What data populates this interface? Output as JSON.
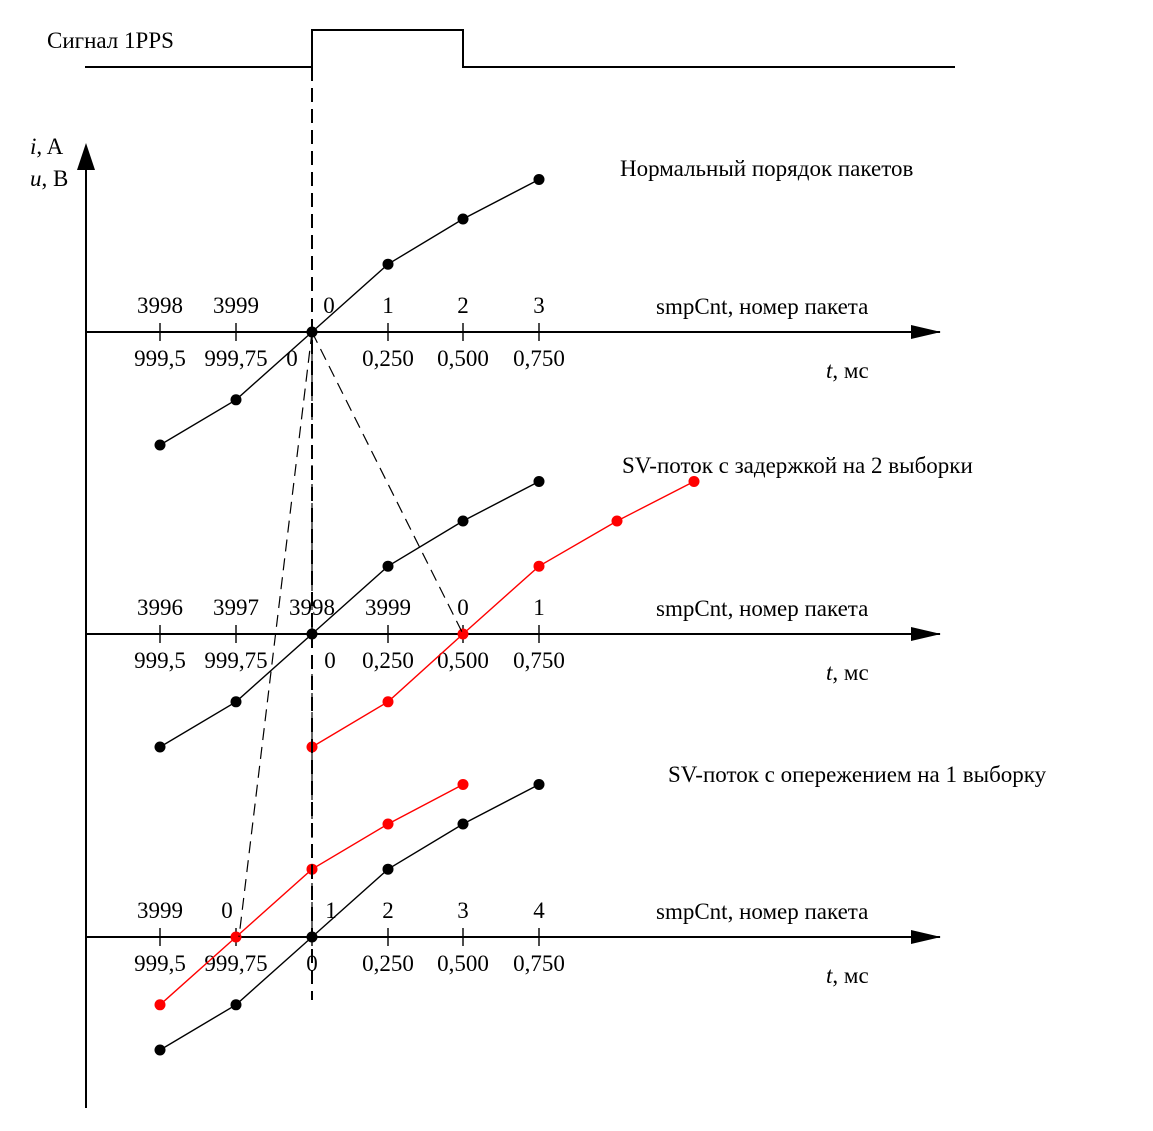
{
  "pps": {
    "label": "Сигнал 1PPS"
  },
  "y_axis": {
    "label_current_var": "i",
    "label_current_unit": ", A",
    "label_voltage_var": "u",
    "label_voltage_unit": ", B"
  },
  "panels": [
    {
      "title": "Нормальный порядок пакетов",
      "smp_label": "smpCnt, номер пакета",
      "time_var": "t",
      "time_unit": ", мс",
      "smp_ticks": [
        "3998",
        "3999",
        "0",
        "1",
        "2",
        "3"
      ],
      "time_ticks": [
        "999,5",
        "999,75",
        "0",
        "0,250",
        "0,500",
        "0,750"
      ],
      "black_series": [
        -1.0,
        -0.6,
        0.0,
        0.6,
        1.0,
        1.35
      ],
      "red_series": []
    },
    {
      "title": "SV-поток с задержкой на 2 выборки",
      "smp_label": "smpCnt, номер пакета",
      "time_var": "t",
      "time_unit": ", мс",
      "smp_ticks": [
        "3996",
        "3997",
        "3998",
        "3999",
        "0",
        "1"
      ],
      "time_ticks": [
        "999,5",
        "999,75",
        "0",
        "0,250",
        "0,500",
        "0,750"
      ],
      "black_series": [
        -1.0,
        -0.6,
        0.0,
        0.6,
        1.0,
        1.35
      ],
      "red_series": [
        null,
        null,
        -1.0,
        -0.6,
        0.0,
        0.6,
        1.0,
        1.35
      ]
    },
    {
      "title": "SV-поток с опережением на 1 выборку",
      "smp_label": "smpCnt, номер пакета",
      "time_var": "t",
      "time_unit": ", мс",
      "smp_ticks": [
        "3999",
        "0",
        "1",
        "2",
        "3",
        "4"
      ],
      "time_ticks": [
        "999,5",
        "999,75",
        "0",
        "0,250",
        "0,500",
        "0,750"
      ],
      "black_series": [
        -1.0,
        -0.6,
        0.0,
        0.6,
        1.0,
        1.35
      ],
      "red_series": [
        -0.6,
        0.0,
        0.6,
        1.0,
        1.35
      ]
    }
  ],
  "colors": {
    "black": "#000000",
    "red": "#ff0000"
  }
}
